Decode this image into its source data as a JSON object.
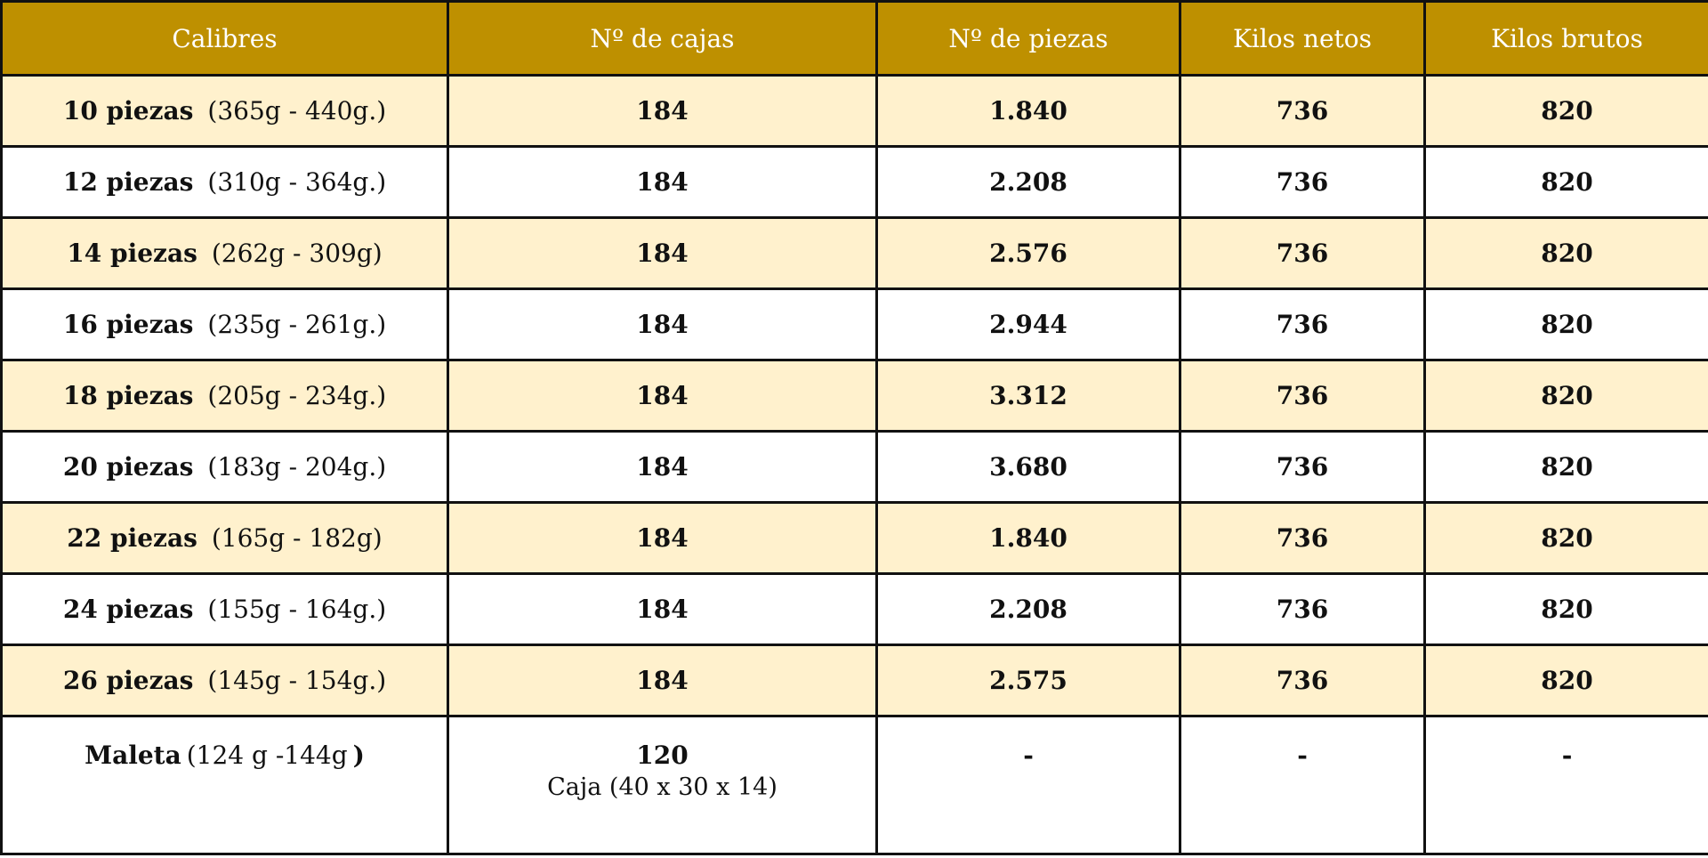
{
  "headers": [
    "Calibres",
    "Nº de cajas",
    "Nº de piezas",
    "Kilos netos",
    "Kilos brutos"
  ],
  "rows": [
    {
      "label": "10 piezas",
      "range": "(365g - 440g.)",
      "cajas": "184",
      "piezas": "1.840",
      "netos": "736",
      "brutos": "820"
    },
    {
      "label": "12 piezas",
      "range": "(310g - 364g.)",
      "cajas": "184",
      "piezas": "2.208",
      "netos": "736",
      "brutos": "820"
    },
    {
      "label": "14 piezas",
      "range": "(262g - 309g)",
      "cajas": "184",
      "piezas": "2.576",
      "netos": "736",
      "brutos": "820"
    },
    {
      "label": "16 piezas",
      "range": "(235g - 261g.)",
      "cajas": "184",
      "piezas": "2.944",
      "netos": "736",
      "brutos": "820"
    },
    {
      "label": "18 piezas",
      "range": "(205g - 234g.)",
      "cajas": "184",
      "piezas": "3.312",
      "netos": "736",
      "brutos": "820"
    },
    {
      "label": "20 piezas",
      "range": "(183g - 204g.)",
      "cajas": "184",
      "piezas": "3.680",
      "netos": "736",
      "brutos": "820"
    },
    {
      "label": "22 piezas",
      "range": "(165g - 182g)",
      "cajas": "184",
      "piezas": "1.840",
      "netos": "736",
      "brutos": "820"
    },
    {
      "label": "24 piezas",
      "range": "(155g - 164g.)",
      "cajas": "184",
      "piezas": "2.208",
      "netos": "736",
      "brutos": "820"
    },
    {
      "label": "26 piezas",
      "range": "(145g - 154g.)",
      "cajas": "184",
      "piezas": "2.575",
      "netos": "736",
      "brutos": "820"
    }
  ],
  "last_row": {
    "label": "Maleta",
    "range": "(124 g -144g",
    "range_close": ")",
    "cajas": "120",
    "cajas_sub": "Caja (40 x 30 x 14)",
    "piezas": "-",
    "netos": "-",
    "brutos": "-"
  },
  "colors": {
    "header_bg": "#be9000",
    "header_text": "#ffffff",
    "alt_row_bg": "#fff1cd",
    "plain_row_bg": "#ffffff",
    "border": "#111111"
  }
}
